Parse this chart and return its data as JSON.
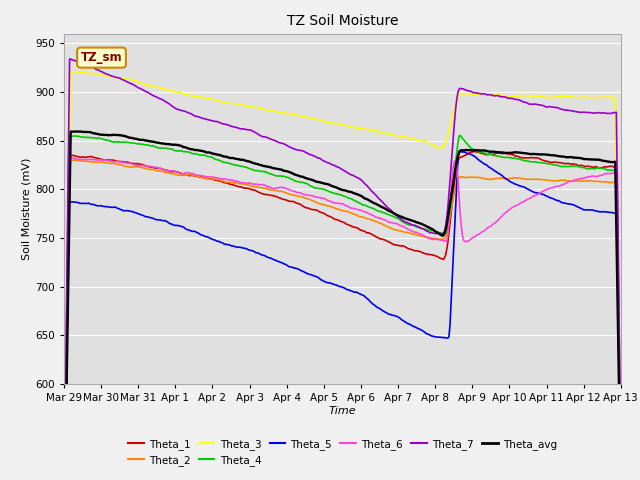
{
  "title": "TZ Soil Moisture",
  "xlabel": "Time",
  "ylabel": "Soil Moisture (mV)",
  "ylim": [
    600,
    960
  ],
  "yticks": [
    600,
    650,
    700,
    750,
    800,
    850,
    900,
    950
  ],
  "figsize": [
    6.4,
    4.8
  ],
  "dpi": 100,
  "background_color": "#f0f0f0",
  "plot_bg_color": "#e0e0e0",
  "series_colors": {
    "Theta_1": "#cc0000",
    "Theta_2": "#ff8800",
    "Theta_3": "#ffff00",
    "Theta_4": "#00cc00",
    "Theta_5": "#0000ee",
    "Theta_6": "#ff44dd",
    "Theta_7": "#9900cc",
    "Theta_avg": "#000000"
  },
  "date_labels": [
    "Mar 29",
    "Mar 30",
    "Mar 31",
    "Apr 1",
    "Apr 2",
    "Apr 3",
    "Apr 4",
    "Apr 5",
    "Apr 6",
    "Apr 7",
    "Apr 8",
    "Apr 9",
    "Apr 10",
    "Apr 11",
    "Apr 12",
    "Apr 13"
  ],
  "legend_label": "TZ_sm"
}
